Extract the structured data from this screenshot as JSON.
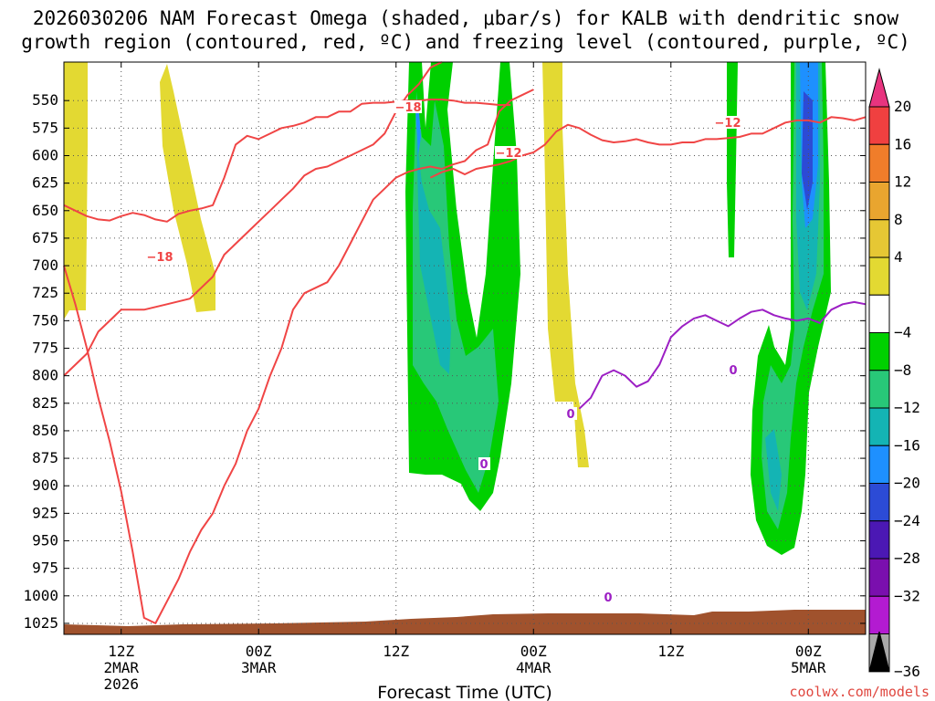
{
  "chart_data": {
    "type": "time-height cross section",
    "title_line1": "2026030206 NAM Forecast Omega (shaded, μbar/s) for KALB with dendritic snow",
    "title_line2": "growth region (contoured, red, ºC) and freezing level (contoured, purple, ºC)",
    "xlabel": "Forecast Time (UTC)",
    "credit": "coolwx.com/models",
    "y_axis": {
      "variable": "pressure (hPa)",
      "range": [
        1035,
        515
      ],
      "ticks": [
        550,
        575,
        600,
        625,
        650,
        675,
        700,
        725,
        750,
        775,
        800,
        825,
        850,
        875,
        900,
        925,
        950,
        975,
        1000,
        1025
      ]
    },
    "x_axis": {
      "units": "hours after 2026-03-02 00Z",
      "range": [
        7,
        77
      ],
      "ticks": [
        {
          "hour": 12,
          "lines": [
            "12Z",
            "2MAR",
            "2026"
          ]
        },
        {
          "hour": 24,
          "lines": [
            "00Z",
            "3MAR"
          ]
        },
        {
          "hour": 36,
          "lines": [
            "12Z"
          ]
        },
        {
          "hour": 48,
          "lines": [
            "00Z",
            "4MAR"
          ]
        },
        {
          "hour": 60,
          "lines": [
            "12Z"
          ]
        },
        {
          "hour": 72,
          "lines": [
            "00Z",
            "5MAR"
          ]
        },
        {
          "hour": 84,
          "lines": [
            "12Z"
          ]
        }
      ]
    },
    "colorbar": {
      "labels": [
        "20",
        "16",
        "12",
        "8",
        "4",
        "−4",
        "−8",
        "−12",
        "−16",
        "−20",
        "−24",
        "−28",
        "−32",
        "−36"
      ],
      "colors": [
        "#e8347f",
        "#f04040",
        "#f07d2a",
        "#e9a52f",
        "#e6c734",
        "#e3d932",
        "#ffffff",
        "#00d000",
        "#28c878",
        "#14b4b4",
        "#1e90ff",
        "#2c4bd6",
        "#4b18b4",
        "#7a0fae",
        "#b31bd1",
        "#a8a8a8",
        "#000000"
      ]
    },
    "contour_labels": {
      "red": [
        "−18",
        "−18",
        "−12",
        "−12"
      ],
      "purple": [
        "0",
        "0",
        "0",
        "0"
      ]
    },
    "series": [
      {
        "name": "dendritic -18C isotherm (upper)",
        "color": "#f04545",
        "hours": [
          7,
          8,
          9,
          10,
          11,
          12,
          13,
          14,
          15,
          16,
          17,
          18,
          19,
          20,
          21,
          22,
          23,
          24,
          25,
          26,
          27,
          28,
          29,
          30,
          31,
          32,
          33,
          34,
          35,
          36,
          37,
          38,
          39,
          40,
          41,
          42,
          43,
          44,
          45,
          46
        ],
        "pressure": [
          645,
          650,
          655,
          658,
          659,
          655,
          652,
          654,
          658,
          660,
          653,
          650,
          648,
          645,
          620,
          590,
          582,
          585,
          580,
          575,
          573,
          570,
          565,
          565,
          560,
          560,
          553,
          552,
          552,
          551,
          550,
          550,
          549,
          549,
          550,
          552,
          552,
          553,
          554,
          554
        ]
      },
      {
        "name": "dendritic -12C isotherm (upper)",
        "color": "#f04545",
        "hours": [
          39,
          40,
          41,
          42,
          43,
          44,
          45,
          46,
          47,
          48,
          49,
          50,
          51,
          52,
          53,
          54,
          55,
          56,
          57,
          58,
          59,
          60,
          61,
          62,
          63,
          64,
          65,
          66,
          67,
          68,
          69,
          70,
          71,
          72,
          73,
          74,
          75,
          76,
          77
        ],
        "pressure": [
          620,
          615,
          612,
          617,
          612,
          610,
          608,
          605,
          600,
          597,
          590,
          578,
          572,
          575,
          581,
          586,
          588,
          587,
          585,
          588,
          590,
          590,
          588,
          588,
          585,
          585,
          584,
          583,
          580,
          580,
          575,
          570,
          568,
          568,
          570,
          565,
          566,
          568,
          565
        ]
      },
      {
        "name": "dendritic -18C isotherm (lower)",
        "color": "#f04545",
        "hours": [
          7,
          8,
          9,
          10,
          12,
          14,
          16,
          18,
          20,
          21,
          22,
          23,
          24,
          25,
          26,
          27,
          28,
          29,
          30,
          31,
          32,
          33,
          34,
          35,
          36,
          37,
          38,
          39,
          40
        ],
        "pressure": [
          800,
          790,
          780,
          760,
          740,
          740,
          735,
          730,
          710,
          690,
          680,
          670,
          660,
          650,
          640,
          630,
          618,
          612,
          610,
          605,
          600,
          595,
          590,
          580,
          560,
          545,
          535,
          520,
          515
        ]
      },
      {
        "name": "dendritic -12C isotherm (lower)",
        "color": "#f04545",
        "hours": [
          7,
          8,
          9,
          10,
          11,
          12,
          13,
          14,
          15,
          16,
          17,
          18,
          19,
          20,
          21,
          22,
          23,
          24,
          25,
          26,
          27,
          28,
          29,
          30,
          31,
          32,
          33,
          34,
          35,
          36,
          37,
          38,
          39,
          40,
          41,
          42,
          43,
          44,
          45,
          46,
          47,
          48
        ],
        "pressure": [
          700,
          735,
          775,
          820,
          860,
          905,
          960,
          1020,
          1025,
          1005,
          985,
          960,
          940,
          925,
          900,
          880,
          850,
          830,
          800,
          775,
          740,
          725,
          720,
          715,
          700,
          680,
          660,
          640,
          630,
          620,
          615,
          612,
          610,
          612,
          608,
          605,
          595,
          590,
          560,
          550,
          545,
          540
        ]
      },
      {
        "name": "freezing level 0C",
        "color": "#9c1fc4",
        "hours": [
          52,
          53,
          54,
          55,
          56,
          57,
          58,
          59,
          60,
          61,
          62,
          63,
          64,
          65,
          66,
          67,
          68,
          69,
          70,
          71,
          72,
          73,
          74,
          75,
          76,
          77
        ],
        "pressure": [
          830,
          820,
          800,
          795,
          800,
          810,
          805,
          790,
          765,
          755,
          748,
          745,
          750,
          755,
          748,
          742,
          740,
          745,
          748,
          750,
          748,
          752,
          740,
          735,
          733,
          735
        ]
      }
    ],
    "shaded_regions": [
      {
        "name": "ascent band near 4MAR 00Z",
        "omega_range": [
          -16,
          -4
        ],
        "hours": [
          44,
          54
        ],
        "pressure": [
          515,
          900
        ]
      },
      {
        "name": "ascent band near 5MAR 12Z",
        "omega_range": [
          -24,
          -4
        ],
        "hours": [
          75,
          86
        ],
        "pressure": [
          515,
          945
        ]
      },
      {
        "name": "descent band near 2MAR 06Z",
        "omega_range": [
          4,
          8
        ],
        "hours": [
          7,
          9
        ],
        "pressure": [
          515,
          730
        ]
      },
      {
        "name": "descent band near 2MAR 18Z",
        "omega_range": [
          4,
          8
        ],
        "hours": [
          17,
          23
        ],
        "pressure": [
          515,
          705
        ]
      },
      {
        "name": "descent band near 4MAR 12Z",
        "omega_range": [
          4,
          8
        ],
        "hours": [
          56,
          60
        ],
        "pressure": [
          515,
          855
        ]
      },
      {
        "name": "terrain / below ground",
        "pressure": [
          1020,
          1035
        ]
      }
    ]
  }
}
